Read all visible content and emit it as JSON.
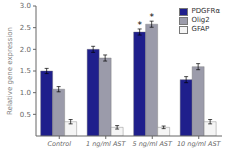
{
  "chart_data": {
    "type": "bar",
    "categories": [
      "Control",
      "1 ng/ml AST",
      "5 ng/ml AST",
      "10 ng/ml AST"
    ],
    "series": [
      {
        "name": "PDGFRα",
        "color": "#1f1f8c",
        "values": [
          1.5,
          2.0,
          2.4,
          1.3
        ],
        "errors": [
          0.06,
          0.07,
          0.07,
          0.07
        ]
      },
      {
        "name": "Olig2",
        "color": "#9b9baa",
        "values": [
          1.08,
          1.8,
          2.58,
          1.6
        ],
        "errors": [
          0.06,
          0.07,
          0.07,
          0.07
        ]
      },
      {
        "name": "GFAP",
        "color": "#f5f5f5",
        "values": [
          0.33,
          0.2,
          0.2,
          0.33
        ],
        "errors": [
          0.05,
          0.04,
          0.03,
          0.05
        ]
      }
    ],
    "ylabel": "Relative gene expression",
    "ylim": [
      0,
      3.0
    ],
    "yticks": [
      0.5,
      {
        "value": 1.0,
        "label": "1.0"
      },
      1.5,
      {
        "value": 2.0,
        "label": "2.0"
      },
      2.5,
      {
        "value": 3.0,
        "label": "3.0"
      }
    ],
    "grid": false,
    "legend": "upper right",
    "annotations": [
      {
        "text": "*",
        "category": "5 ng/ml AST",
        "series": "PDGFRα"
      },
      {
        "text": "*",
        "category": "5 ng/ml AST",
        "series": "Olig2"
      }
    ]
  }
}
